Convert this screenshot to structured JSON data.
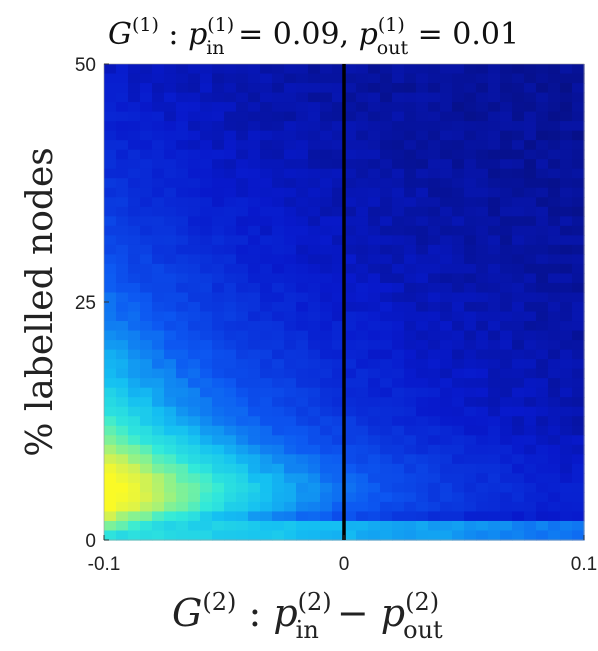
{
  "chart_data": {
    "type": "heatmap",
    "title": {
      "prefix": "G",
      "prefix_sup": "(1)",
      "colon": " : ",
      "p1": "p",
      "p1_sup": "(1)",
      "p1_sub": "in",
      "eq1": " = 0.09,  ",
      "p2": "p",
      "p2_sup": "(1)",
      "p2_sub": "out",
      "eq2": " = 0.01"
    },
    "xlabel": {
      "prefix": "G",
      "prefix_sup": "(2)",
      "colon": " :  ",
      "p1": "p",
      "p1_sup": "(2)",
      "p1_sub": "in",
      "minus": " − ",
      "p2": "p",
      "p2_sup": "(2)",
      "p2_sub": "out"
    },
    "ylabel": "% labelled nodes",
    "x_range": [
      -0.1,
      0.1
    ],
    "y_range": [
      0,
      50
    ],
    "x_ticks": [
      {
        "value": -0.1,
        "label": "-0.1"
      },
      {
        "value": 0,
        "label": "0"
      },
      {
        "value": 0.1,
        "label": "0.1"
      }
    ],
    "y_ticks": [
      {
        "value": 0,
        "label": "0"
      },
      {
        "value": 25,
        "label": "25"
      },
      {
        "value": 50,
        "label": "50"
      }
    ],
    "grid": false,
    "colormap": "parula",
    "vertical_line": {
      "x": 0,
      "color": "#000000"
    },
    "grid_size": {
      "cols": 40,
      "rows": 50
    }
  }
}
